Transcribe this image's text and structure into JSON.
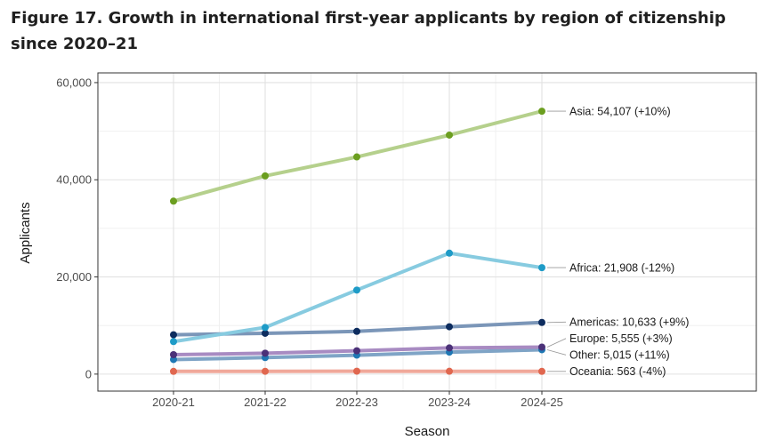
{
  "figure": {
    "title": "Figure 17. Growth in international first-year applicants by region of citizenship since 2020–21"
  },
  "chart_data": {
    "type": "line",
    "xlabel": "Season",
    "ylabel": "Applicants",
    "categories": [
      "2020-21",
      "2021-22",
      "2022-23",
      "2023-24",
      "2024-25"
    ],
    "ylim": [
      -3500,
      62000
    ],
    "yticks": [
      0,
      20000,
      40000,
      60000
    ],
    "ytick_labels": [
      "0",
      "20,000",
      "40,000",
      "60,000"
    ],
    "grid": true,
    "legend": "end-of-line labels",
    "series": [
      {
        "name": "Oceania",
        "values": [
          560,
          580,
          600,
          586,
          563
        ],
        "line_color": "#f0a89a",
        "point_color": "#e0674f",
        "end_label": "Oceania: 563 (-4%)"
      },
      {
        "name": "Other",
        "values": [
          3000,
          3400,
          3900,
          4520,
          5015
        ],
        "line_color": "#7fa4c6",
        "point_color": "#1f78b4",
        "end_label": "Other: 5,015 (+11%)"
      },
      {
        "name": "Europe",
        "values": [
          4000,
          4300,
          4800,
          5390,
          5555
        ],
        "line_color": "#a88bc2",
        "point_color": "#4b3178",
        "end_label": "Europe: 5,555 (+3%)"
      },
      {
        "name": "Americas",
        "values": [
          8100,
          8400,
          8800,
          9750,
          10633
        ],
        "line_color": "#7b96b8",
        "point_color": "#0d2c5e",
        "end_label": "Americas: 10,633 (+9%)"
      },
      {
        "name": "Africa",
        "values": [
          6700,
          9600,
          17300,
          24900,
          21908
        ],
        "line_color": "#87cbe0",
        "point_color": "#1e9bc7",
        "end_label": "Africa: 21,908 (-12%)"
      },
      {
        "name": "Asia",
        "values": [
          35600,
          40800,
          44700,
          49200,
          54107
        ],
        "line_color": "#b5d08c",
        "point_color": "#6b9e1f",
        "end_label": "Asia: 54,107 (+10%)"
      }
    ]
  }
}
